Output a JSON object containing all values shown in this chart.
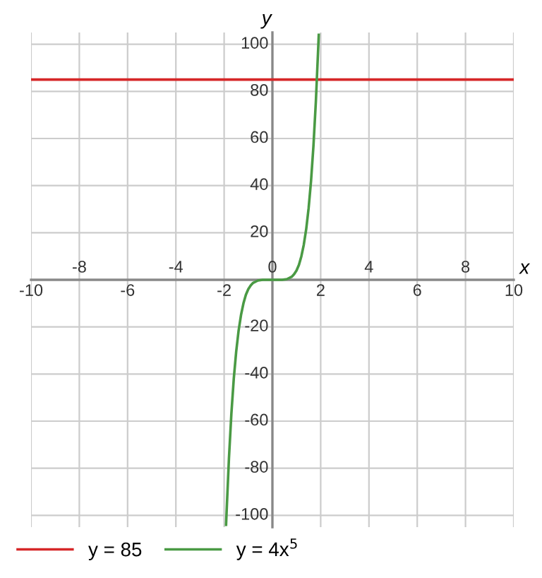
{
  "chart_data": {
    "type": "line",
    "xlabel": "x",
    "ylabel": "y",
    "xlim": [
      -10,
      10
    ],
    "ylim": [
      -105,
      105
    ],
    "xticks": [
      -10,
      {
        "value": -8,
        "label": null
      },
      -6,
      {
        "value": -4,
        "label": null
      },
      -2,
      {
        "value": 0,
        "label": null
      },
      2,
      {
        "value": 4,
        "label": null
      },
      6,
      {
        "value": 8,
        "label": null
      },
      10
    ],
    "x2lim": [
      -10,
      10
    ],
    "x2ticks": [
      -8,
      -4,
      0,
      4,
      8
    ],
    "yticks": [
      -100,
      -80,
      -60,
      -40,
      -20,
      20,
      40,
      60,
      80,
      100
    ],
    "grid": true,
    "legend": "bottom",
    "marker": "none",
    "line_style": "solid",
    "series": [
      {
        "name": "y = 85",
        "color": "#d62728",
        "x": [
          -10,
          10
        ],
        "values": [
          85,
          85
        ]
      },
      {
        "name": "y = 4x$^{5}$",
        "color": "#4a9a44",
        "x": [
          -1.92,
          -1.9,
          -1.8,
          -1.7,
          -1.6,
          -1.5,
          -1.4,
          -1.3,
          -1.2,
          -1.1,
          -1.0,
          -0.9,
          -0.8,
          -0.6,
          -0.4,
          0,
          0.4,
          0.6,
          0.8,
          0.9,
          1.0,
          1.1,
          1.2,
          1.3,
          1.4,
          1.5,
          1.6,
          1.7,
          1.8,
          1.9,
          1.92
        ],
        "values": [
          -104,
          -99,
          -75.6,
          -56.8,
          -41.9,
          -30.4,
          -21.5,
          -14.9,
          -10,
          -6.4,
          -4,
          -2.4,
          -1.3,
          -0.3,
          0,
          0,
          0,
          0.3,
          1.3,
          2.4,
          4,
          6.4,
          10,
          14.9,
          21.5,
          30.4,
          41.9,
          56.8,
          75.6,
          99,
          104
        ]
      }
    ]
  }
}
